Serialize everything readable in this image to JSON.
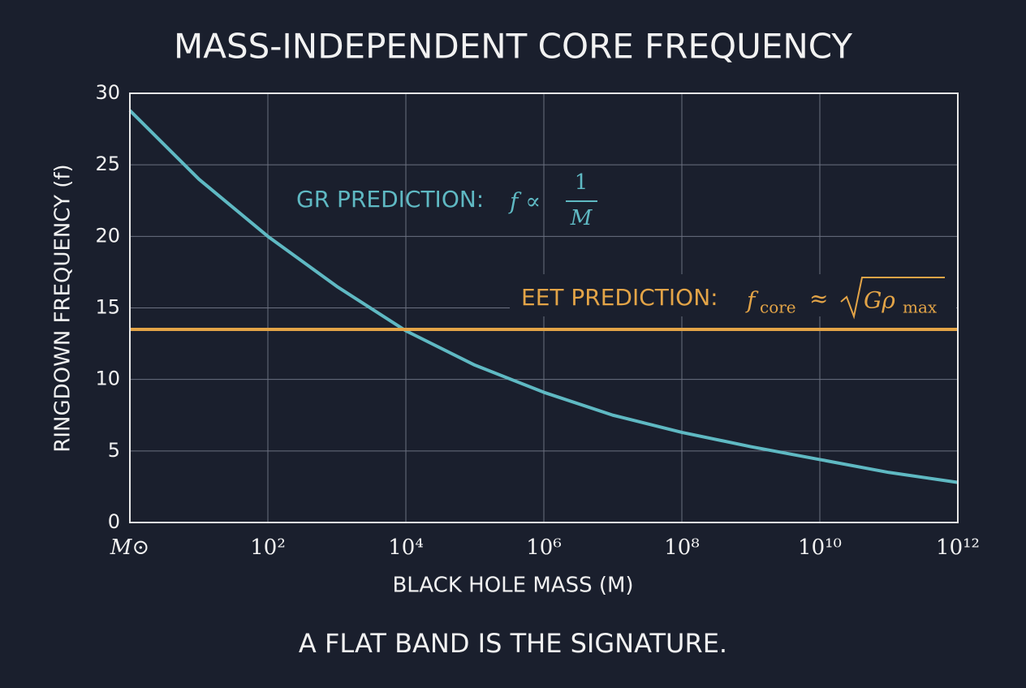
{
  "chart_data": {
    "type": "line",
    "title": "MASS-INDEPENDENT CORE FREQUENCY",
    "x_label": "BLACK HOLE MASS (M)",
    "y_label": "RINGDOWN FREQUENCY (f)",
    "caption": "A FLAT BAND IS THE SIGNATURE.",
    "x_scale": "log",
    "grid": true,
    "xlim": [
      1,
      1000000000000
    ],
    "ylim": [
      0,
      30
    ],
    "xticks": [
      {
        "value": 1,
        "label": "M⊙"
      },
      {
        "value": 100,
        "label": "10²"
      },
      {
        "value": 10000,
        "label": "10⁴"
      },
      {
        "value": 1000000,
        "label": "10⁶"
      },
      {
        "value": 100000000,
        "label": "10⁸"
      },
      {
        "value": 10000000000,
        "label": "10¹⁰"
      },
      {
        "value": 1000000000000,
        "label": "10¹²"
      }
    ],
    "yticks": [
      0,
      5,
      10,
      15,
      20,
      25,
      30
    ],
    "series": [
      {
        "name": "GR PREDICTION:",
        "color": "#5fb9c3",
        "x": [
          1,
          10,
          100,
          1000,
          10000,
          100000,
          1000000,
          10000000,
          100000000,
          1000000000,
          10000000000,
          100000000000,
          1000000000000
        ],
        "values": [
          28.8,
          24.0,
          20.0,
          16.5,
          13.4,
          11.0,
          9.1,
          7.5,
          6.3,
          5.3,
          4.4,
          3.5,
          2.8
        ],
        "annotation": {
          "formula": "f ∝",
          "numerator": "1",
          "denominator": "M"
        }
      },
      {
        "name": "EET PREDICTION:",
        "color": "#e3a447",
        "x": [
          1,
          1000000000000
        ],
        "values": [
          13.5,
          13.5
        ],
        "annotation": {
          "symbol": "f",
          "subscript": "core",
          "relation": "≈",
          "radicand": "Gρ",
          "radicand_subscript": "max"
        }
      }
    ]
  }
}
